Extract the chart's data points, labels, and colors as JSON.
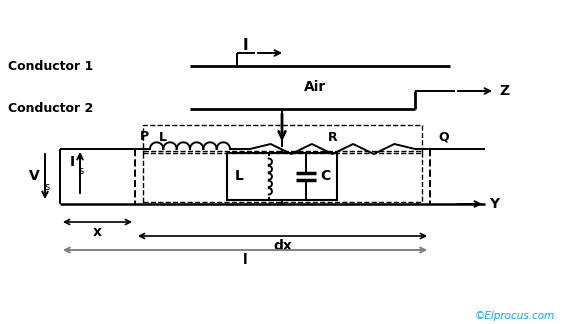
{
  "bg_color": "#ffffff",
  "line_color": "#000000",
  "dashed_color": "#000000",
  "cyan_color": "#00aaff",
  "conductor1_label": "Conductor 1",
  "conductor2_label": "Conductor 2",
  "air_label": "Air",
  "Is_label": "I",
  "Is_sub": "s",
  "Vs_label": "V",
  "Vs_sub": "s",
  "L_series_label": "L",
  "R_label": "R",
  "L_shunt_label": "L",
  "C_label": "C",
  "P_label": "P",
  "Q_label": "Q",
  "I_label": "I",
  "Z_label": "Z",
  "Y_label": "Y",
  "x_label": "x",
  "dx_label": "dx",
  "l_label": "l",
  "copyright": "©Elprocus.com"
}
